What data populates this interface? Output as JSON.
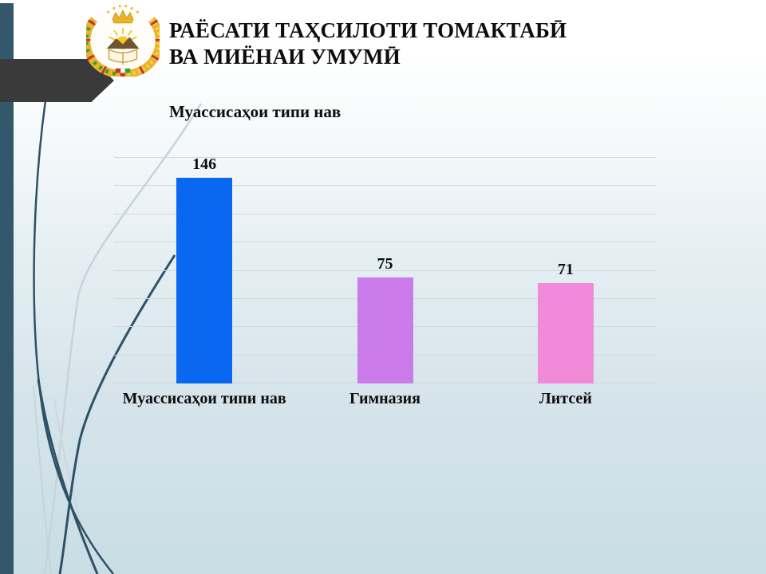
{
  "slide": {
    "title_line1": "РАЁСАТИ ТАҲСИЛОТИ ТОМАКТАБӢ",
    "title_line2": "ВА МИЁНАИ УМУМӢ"
  },
  "icons": {
    "emblem": "tajikistan-coat-of-arms"
  },
  "chart_data": {
    "type": "bar",
    "title": "Муассисаҳои типи нав",
    "categories": [
      "Муассисаҳои типи нав",
      "Гимназия",
      "Литсей"
    ],
    "values": [
      146,
      75,
      71
    ],
    "bar_colors": [
      "#0a68f0",
      "#cb7ae9",
      "#f08ad9"
    ],
    "ylim": [
      0,
      160
    ],
    "grid_step": 20,
    "grid": true,
    "legend": false,
    "data_labels": true,
    "xlabel": "",
    "ylabel": ""
  },
  "style": {
    "accent_bar_color": "#33586c",
    "arrow_color": "#3a3a3a",
    "gridline_color": "#d3d9dd",
    "curve_dark_color": "#2d5266",
    "curve_light_color": "#c6d3da",
    "background_top": "#ffffff",
    "background_bottom": "#c9dde5"
  }
}
